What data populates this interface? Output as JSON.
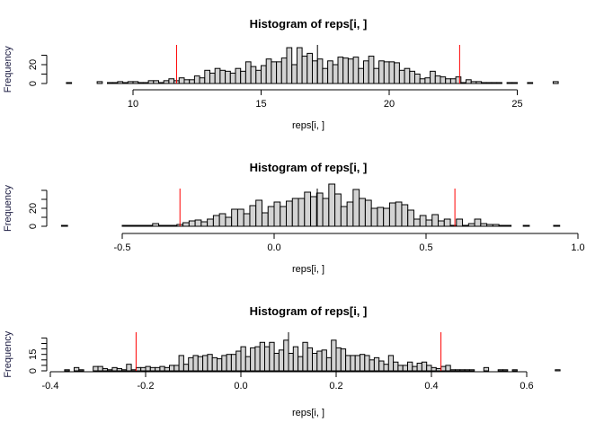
{
  "chart_data": [
    {
      "type": "bar",
      "title": "Histogram of reps[i, ]",
      "xlabel": "reps[i, ]",
      "ylabel": "Frequency",
      "break_start": 7.4,
      "bin_width": 0.2,
      "counts": [
        1,
        0,
        0,
        0,
        0,
        0,
        2,
        0,
        1,
        1,
        2,
        1,
        2,
        2,
        1,
        1,
        3,
        3,
        1,
        3,
        5,
        3,
        6,
        4,
        4,
        8,
        6,
        14,
        11,
        16,
        14,
        13,
        11,
        16,
        13,
        23,
        18,
        14,
        19,
        26,
        23,
        23,
        27,
        38,
        20,
        38,
        29,
        32,
        24,
        26,
        16,
        24,
        20,
        28,
        27,
        26,
        28,
        16,
        24,
        29,
        16,
        24,
        23,
        23,
        22,
        14,
        16,
        13,
        10,
        5,
        6,
        13,
        8,
        7,
        5,
        5,
        7,
        1,
        4,
        2,
        2,
        1,
        1,
        1,
        1,
        0,
        1,
        1,
        0,
        0,
        1,
        0,
        0,
        0,
        0,
        2
      ],
      "xticks": [
        "10",
        "15",
        "20",
        "25"
      ],
      "xtick_values": [
        10,
        15,
        20,
        25
      ],
      "yticks": [
        0,
        10,
        20,
        30
      ],
      "ytick_labels": [
        "0",
        "20"
      ],
      "ytick_label_values": [
        0,
        20
      ],
      "vlines": [
        {
          "x": 11.7,
          "color": "#ff0000"
        },
        {
          "x": 17.2,
          "color": "#000000"
        },
        {
          "x": 22.75,
          "color": "#ff0000"
        }
      ]
    },
    {
      "type": "bar",
      "title": "Histogram of reps[i, ]",
      "xlabel": "reps[i, ]",
      "ylabel": "Frequency",
      "break_start": -0.7,
      "bin_width": 0.02,
      "counts": [
        1,
        0,
        0,
        0,
        0,
        0,
        0,
        0,
        0,
        0,
        1,
        1,
        1,
        1,
        1,
        3,
        1,
        1,
        1,
        2,
        4,
        6,
        7,
        5,
        8,
        12,
        14,
        10,
        19,
        19,
        14,
        23,
        29,
        15,
        22,
        27,
        22,
        28,
        31,
        31,
        38,
        33,
        37,
        31,
        47,
        36,
        22,
        27,
        41,
        31,
        29,
        20,
        21,
        20,
        26,
        27,
        24,
        18,
        8,
        12,
        7,
        13,
        6,
        8,
        1,
        8,
        1,
        3,
        8,
        3,
        2,
        2,
        1,
        1,
        0,
        0,
        1,
        0,
        0,
        0,
        0,
        1
      ],
      "xticks": [
        "-0.5",
        "0.0",
        "0.5",
        "1.0"
      ],
      "xtick_values": [
        -0.5,
        0,
        0.5,
        1.0
      ],
      "yticks": [
        0,
        10,
        20,
        30,
        40
      ],
      "ytick_labels": [
        "0",
        "20"
      ],
      "ytick_label_values": [
        0,
        20
      ],
      "vlines": [
        {
          "x": -0.31,
          "color": "#ff0000"
        },
        {
          "x": 0.142,
          "color": "#000000"
        },
        {
          "x": 0.595,
          "color": "#ff0000"
        }
      ]
    },
    {
      "type": "bar",
      "title": "Histogram of reps[i, ]",
      "xlabel": "reps[i, ]",
      "ylabel": "Frequency",
      "break_start": -0.37,
      "bin_width": 0.01,
      "counts": [
        1,
        0,
        3,
        1,
        0,
        0,
        4,
        4,
        2,
        1,
        3,
        2,
        1,
        6,
        1,
        3,
        3,
        4,
        3,
        3,
        4,
        3,
        5,
        5,
        14,
        6,
        12,
        14,
        13,
        14,
        15,
        12,
        11,
        14,
        15,
        15,
        18,
        22,
        13,
        21,
        22,
        26,
        22,
        26,
        16,
        19,
        28,
        16,
        22,
        13,
        26,
        21,
        16,
        18,
        19,
        12,
        28,
        21,
        20,
        14,
        14,
        14,
        15,
        14,
        10,
        12,
        9,
        6,
        14,
        8,
        5,
        5,
        8,
        4,
        7,
        8,
        5,
        3,
        2,
        4,
        5,
        1,
        1,
        1,
        1,
        1,
        0,
        0,
        3,
        0,
        0,
        1,
        1,
        0,
        1,
        0,
        0,
        0,
        0,
        0,
        0,
        0,
        0,
        1
      ],
      "xticks": [
        "-0.4",
        "-0.2",
        "0.0",
        "0.2",
        "0.4",
        "0.6"
      ],
      "xtick_values": [
        -0.4,
        -0.2,
        0,
        0.2,
        0.4,
        0.6
      ],
      "yticks": [
        0,
        5,
        10,
        15,
        20,
        25,
        30
      ],
      "ytick_labels": [
        "0",
        "15"
      ],
      "ytick_label_values": [
        0,
        15
      ],
      "vlines": [
        {
          "x": -0.22,
          "color": "#ff0000"
        },
        {
          "x": 0.1,
          "color": "#000000"
        },
        {
          "x": 0.42,
          "color": "#ff0000"
        }
      ]
    }
  ],
  "style": {
    "bar_fill": "#d3d3d3",
    "bar_stroke": "#000000"
  }
}
